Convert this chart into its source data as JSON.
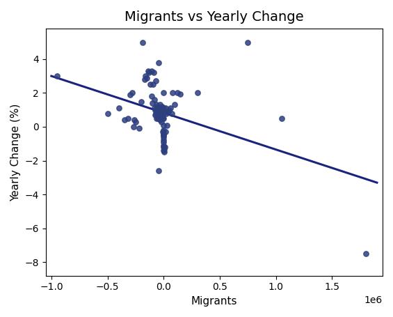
{
  "title": "Migrants vs Yearly Change",
  "xlabel": "Migrants",
  "ylabel": "Yearly Change (%)",
  "dot_color": "#2e3f7f",
  "line_color": "#1a237e",
  "scatter_points": [
    [
      -950000,
      3.0
    ],
    [
      -500000,
      0.8
    ],
    [
      -400000,
      1.1
    ],
    [
      -350000,
      0.4
    ],
    [
      -320000,
      0.5
    ],
    [
      -300000,
      1.9
    ],
    [
      -280000,
      2.0
    ],
    [
      -270000,
      0.0
    ],
    [
      -260000,
      0.4
    ],
    [
      -250000,
      0.3
    ],
    [
      -220000,
      -0.1
    ],
    [
      -200000,
      1.5
    ],
    [
      -185000,
      5.0
    ],
    [
      -170000,
      2.8
    ],
    [
      -160000,
      3.0
    ],
    [
      -150000,
      2.9
    ],
    [
      -140000,
      3.3
    ],
    [
      -130000,
      3.2
    ],
    [
      -120000,
      2.5
    ],
    [
      -110000,
      3.3
    ],
    [
      -105000,
      1.8
    ],
    [
      -100000,
      1.4
    ],
    [
      -95000,
      2.5
    ],
    [
      -90000,
      3.2
    ],
    [
      -85000,
      1.6
    ],
    [
      -80000,
      1.1
    ],
    [
      -78000,
      0.7
    ],
    [
      -75000,
      1.0
    ],
    [
      -72000,
      0.8
    ],
    [
      -70000,
      2.7
    ],
    [
      -65000,
      1.3
    ],
    [
      -63000,
      0.5
    ],
    [
      -60000,
      1.2
    ],
    [
      -58000,
      1.0
    ],
    [
      -55000,
      0.9
    ],
    [
      -52000,
      0.6
    ],
    [
      -50000,
      0.5
    ],
    [
      -48000,
      0.5
    ],
    [
      -45000,
      3.8
    ],
    [
      -43000,
      -2.6
    ],
    [
      -40000,
      1.1
    ],
    [
      -38000,
      0.6
    ],
    [
      -35000,
      1.1
    ],
    [
      -32000,
      1.3
    ],
    [
      -30000,
      0.4
    ],
    [
      -28000,
      0.9
    ],
    [
      -25000,
      1.1
    ],
    [
      -22000,
      0.3
    ],
    [
      -20000,
      1.1
    ],
    [
      -18000,
      0.8
    ],
    [
      -16000,
      0.8
    ],
    [
      -14000,
      1.1
    ],
    [
      -12000,
      1.2
    ],
    [
      -10000,
      0.5
    ],
    [
      -8000,
      1.0
    ],
    [
      -7000,
      0.9
    ],
    [
      -6000,
      -0.3
    ],
    [
      -5000,
      0.6
    ],
    [
      -4000,
      -0.2
    ],
    [
      -3000,
      -0.5
    ],
    [
      -2000,
      -0.4
    ],
    [
      -1000,
      -0.6
    ],
    [
      0,
      -0.5
    ],
    [
      0,
      -0.8
    ],
    [
      0,
      -0.9
    ],
    [
      0,
      -1.1
    ],
    [
      0,
      -1.2
    ],
    [
      0,
      -1.4
    ],
    [
      0,
      0.1
    ],
    [
      0,
      0.5
    ],
    [
      0,
      1.1
    ],
    [
      0,
      2.0
    ],
    [
      2000,
      -1.5
    ],
    [
      5000,
      -1.3
    ],
    [
      8000,
      -1.2
    ],
    [
      10000,
      0.9
    ],
    [
      15000,
      1.1
    ],
    [
      20000,
      -0.3
    ],
    [
      25000,
      0.8
    ],
    [
      30000,
      0.1
    ],
    [
      40000,
      0.9
    ],
    [
      50000,
      1.0
    ],
    [
      60000,
      1.1
    ],
    [
      70000,
      0.8
    ],
    [
      80000,
      2.0
    ],
    [
      100000,
      1.3
    ],
    [
      120000,
      2.0
    ],
    [
      150000,
      1.95
    ],
    [
      300000,
      2.0
    ],
    [
      750000,
      5.0
    ],
    [
      1050000,
      0.5
    ],
    [
      1800000,
      -7.5
    ]
  ],
  "line_x_start": -1000000,
  "line_y_start": 3.0,
  "line_x_end": 1900000,
  "line_y_end": -3.3,
  "xlim": [
    -1050000,
    1950000
  ],
  "ylim": [
    -8.8,
    5.8
  ],
  "figsize": [
    5.65,
    4.55
  ],
  "dpi": 100,
  "title_fontsize": 14,
  "label_fontsize": 11
}
